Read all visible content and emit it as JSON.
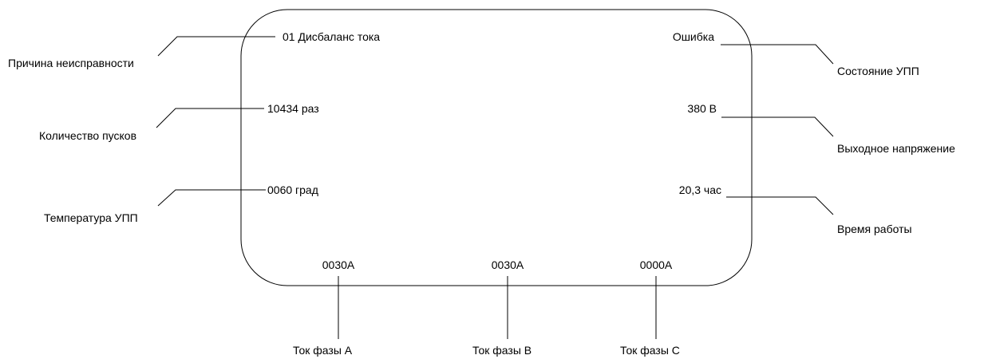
{
  "display": {
    "fault_reason": "01 Дисбаланс тока",
    "status": "Ошибка",
    "start_count": "10434 раз",
    "output_voltage": "380 В",
    "temperature": "0060 град",
    "run_time": "20,3 час",
    "current_a": "0030А",
    "current_b": "0030А",
    "current_c": "0000А"
  },
  "callouts": {
    "fault_reason": "Причина неисправности",
    "status": "Состояние УПП",
    "start_count": "Количество пусков",
    "output_voltage": "Выходное напряжение",
    "temperature": "Температура УПП",
    "run_time": "Время работы",
    "current_a": "Ток фазы А",
    "current_b": "Ток фазы В",
    "current_c": "Ток фазы С"
  }
}
